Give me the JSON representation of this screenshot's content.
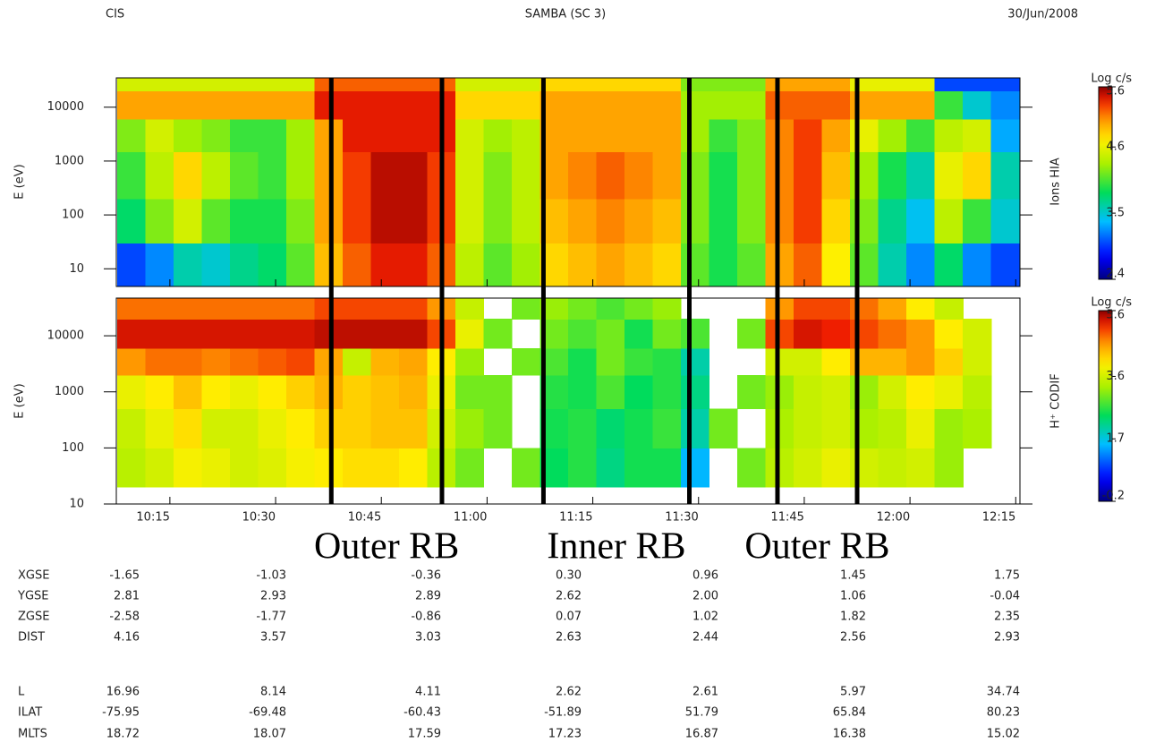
{
  "header": {
    "left": "CIS",
    "center": "SAMBA (SC 3)",
    "right": "30/Jun/2008"
  },
  "chart_data": [
    {
      "type": "heatmap",
      "name": "Ions HIA",
      "ylabel": "E (eV)",
      "log_y": true,
      "xlim": [
        607.4,
        735.6
      ],
      "ylim": [
        4.7,
        35000
      ],
      "yticks": [
        10,
        100,
        1000,
        10000
      ],
      "colorbar": {
        "title": "Log c/s",
        "lim": [
          2.4,
          5.6
        ],
        "ticks": [
          2.4,
          3.5,
          4.6,
          5.6
        ]
      },
      "x_edges": [
        607.5,
        611.5,
        615.5,
        619.5,
        623.5,
        627.5,
        631.5,
        635.5,
        639.5,
        643.5,
        647.5,
        651.5,
        655.5,
        659.5,
        663.5,
        667.5,
        671.5,
        675.5,
        679.5,
        683.5,
        687.5,
        691.5,
        695.5,
        699.5,
        703.5,
        707.5,
        711.5,
        715.5,
        719.5,
        723.5,
        727.5,
        731.5,
        735.5
      ],
      "y_edges": [
        4.7,
        30,
        200,
        1500,
        6000,
        20000,
        35000
      ],
      "z": [
        [
          3.0,
          3.2,
          3.6,
          3.5,
          3.7,
          3.8,
          4.1,
          4.9,
          5.2,
          5.4,
          5.4,
          5.2,
          4.4,
          4.1,
          4.3,
          4.8,
          4.9,
          5.0,
          4.9,
          4.8,
          4.1,
          3.9,
          4.1,
          5.0,
          5.2,
          4.7,
          4.1,
          3.6,
          3.2,
          3.8,
          3.2,
          3.0
        ],
        [
          3.8,
          4.2,
          4.5,
          4.1,
          3.9,
          3.9,
          4.2,
          5.0,
          5.3,
          5.5,
          5.5,
          5.3,
          4.5,
          4.2,
          4.4,
          4.9,
          5.0,
          5.1,
          5.0,
          4.9,
          4.2,
          3.9,
          4.2,
          5.1,
          5.3,
          4.8,
          4.2,
          3.7,
          3.4,
          4.4,
          4.0,
          3.5
        ],
        [
          4.0,
          4.4,
          4.8,
          4.4,
          4.1,
          4.0,
          4.3,
          5.0,
          5.3,
          5.5,
          5.5,
          5.3,
          4.5,
          4.2,
          4.4,
          5.0,
          5.1,
          5.2,
          5.1,
          5.0,
          4.2,
          3.9,
          4.2,
          5.1,
          5.3,
          4.9,
          4.3,
          3.9,
          3.6,
          4.6,
          4.8,
          3.6
        ],
        [
          4.2,
          4.5,
          4.3,
          4.2,
          4.0,
          4.0,
          4.3,
          5.0,
          5.4,
          5.4,
          5.4,
          5.4,
          4.5,
          4.3,
          4.4,
          5.0,
          5.0,
          5.0,
          5.0,
          5.0,
          4.3,
          4.0,
          4.2,
          5.1,
          5.3,
          5.0,
          4.6,
          4.3,
          4.0,
          4.4,
          4.5,
          3.3
        ],
        [
          5.0,
          5.0,
          5.0,
          5.0,
          5.0,
          5.0,
          5.0,
          5.4,
          5.4,
          5.4,
          5.4,
          5.4,
          4.8,
          4.8,
          4.8,
          5.0,
          5.0,
          5.0,
          5.0,
          5.0,
          4.3,
          4.3,
          4.3,
          5.2,
          5.2,
          5.2,
          5.0,
          5.0,
          5.0,
          4.0,
          3.5,
          3.2
        ],
        [
          4.5,
          4.5,
          4.5,
          4.5,
          4.5,
          4.5,
          4.5,
          5.2,
          5.2,
          5.2,
          5.2,
          5.2,
          4.5,
          4.5,
          4.5,
          4.8,
          4.8,
          4.8,
          4.8,
          4.8,
          4.2,
          4.2,
          4.2,
          5.0,
          5.0,
          5.0,
          4.6,
          4.6,
          4.6,
          3.0,
          3.0,
          3.0
        ]
      ]
    },
    {
      "type": "heatmap",
      "name": "H⁺ CODIF",
      "ylabel": "E (eV)",
      "log_y": true,
      "xlim": [
        607.4,
        735.6
      ],
      "ylim": [
        10,
        47000
      ],
      "yticks": [
        10,
        100,
        1000,
        10000
      ],
      "xticks": [
        {
          "value": 615,
          "label": "10:15"
        },
        {
          "value": 630,
          "label": "10:30"
        },
        {
          "value": 645,
          "label": "10:45"
        },
        {
          "value": 660,
          "label": "11:00"
        },
        {
          "value": 675,
          "label": "11:15"
        },
        {
          "value": 690,
          "label": "11:30"
        },
        {
          "value": 705,
          "label": "11:45"
        },
        {
          "value": 720,
          "label": "12:00"
        },
        {
          "value": 735,
          "label": "12:15"
        }
      ],
      "colorbar": {
        "title": "Log c/s",
        "lim": [
          -0.2,
          5.6
        ],
        "ticks": [
          -0.2,
          1.7,
          3.6,
          5.6
        ]
      },
      "x_edges": [
        607.5,
        611.5,
        615.5,
        619.5,
        623.5,
        627.5,
        631.5,
        635.5,
        639.5,
        643.5,
        647.5,
        651.5,
        655.5,
        659.5,
        663.5,
        667.5,
        671.5,
        675.5,
        679.5,
        683.5,
        687.5,
        691.5,
        695.5,
        699.5,
        703.5,
        707.5,
        711.5,
        715.5,
        719.5,
        723.5,
        727.5,
        731.5,
        735.5
      ],
      "y_edges": [
        20,
        100,
        500,
        2000,
        6000,
        20000,
        47000
      ],
      "z": [
        [
          3.4,
          3.6,
          3.9,
          3.8,
          3.6,
          3.7,
          3.9,
          4.0,
          4.1,
          4.1,
          4.0,
          3.4,
          3.0,
          null,
          3.0,
          2.4,
          2.6,
          2.2,
          2.5,
          2.5,
          1.5,
          null,
          3.0,
          3.4,
          3.6,
          3.8,
          3.6,
          3.5,
          3.6,
          3.2,
          null,
          null
        ],
        [
          3.5,
          3.8,
          4.1,
          3.6,
          3.6,
          3.8,
          4.0,
          4.2,
          4.2,
          4.3,
          4.3,
          3.6,
          3.2,
          3.0,
          null,
          2.5,
          2.6,
          2.3,
          2.5,
          2.7,
          2.0,
          3.0,
          null,
          3.3,
          3.5,
          3.6,
          3.3,
          3.4,
          3.8,
          3.2,
          3.3,
          null
        ],
        [
          3.8,
          4.0,
          4.3,
          4.0,
          3.8,
          4.0,
          4.2,
          4.4,
          4.2,
          4.3,
          4.4,
          3.8,
          3.0,
          3.0,
          null,
          2.6,
          2.5,
          2.8,
          2.4,
          2.6,
          2.2,
          null,
          3.0,
          3.2,
          3.5,
          3.6,
          3.2,
          3.6,
          4.0,
          3.8,
          3.4,
          null
        ],
        [
          4.6,
          4.8,
          4.8,
          4.7,
          4.8,
          4.9,
          5.0,
          4.5,
          3.5,
          4.4,
          4.5,
          4.0,
          3.2,
          null,
          3.0,
          2.8,
          2.5,
          3.0,
          2.7,
          2.6,
          2.0,
          null,
          null,
          3.6,
          3.6,
          4.0,
          4.4,
          4.4,
          4.6,
          4.2,
          3.6,
          null
        ],
        [
          5.3,
          5.3,
          5.3,
          5.3,
          5.3,
          5.3,
          5.3,
          5.4,
          5.4,
          5.4,
          5.4,
          5.0,
          3.8,
          3.0,
          null,
          3.0,
          2.8,
          3.0,
          2.5,
          3.0,
          2.8,
          null,
          3.0,
          5.0,
          5.3,
          5.2,
          5.0,
          4.8,
          4.6,
          4.0,
          3.6,
          null
        ],
        [
          4.8,
          4.8,
          4.8,
          4.8,
          4.8,
          4.8,
          4.8,
          5.0,
          5.0,
          5.0,
          5.0,
          4.6,
          3.5,
          null,
          3.0,
          3.2,
          3.0,
          2.8,
          3.0,
          3.2,
          null,
          null,
          null,
          4.6,
          5.0,
          5.0,
          4.8,
          4.5,
          4.0,
          3.5,
          null,
          null
        ]
      ]
    }
  ],
  "boundaries": [
    637.9,
    653.6,
    668,
    688.7,
    701.2,
    712.5
  ],
  "regions": [
    "Outer RB",
    "Inner RB",
    "Outer RB"
  ],
  "ephemeris": [
    {
      "label": "XGSE",
      "values": [
        "-1.65",
        "-1.03",
        "-0.36",
        "0.30",
        "0.96",
        "1.45",
        "1.75"
      ]
    },
    {
      "label": "YGSE",
      "values": [
        "2.81",
        "2.93",
        "2.89",
        "2.62",
        "2.00",
        "1.06",
        "-0.04"
      ]
    },
    {
      "label": "ZGSE",
      "values": [
        "-2.58",
        "-1.77",
        "-0.86",
        "0.07",
        "1.02",
        "1.82",
        "2.35"
      ]
    },
    {
      "label": "DIST",
      "values": [
        "4.16",
        "3.57",
        "3.03",
        "2.63",
        "2.44",
        "2.56",
        "2.93"
      ]
    },
    {
      "label": "L",
      "values": [
        "16.96",
        "8.14",
        "4.11",
        "2.62",
        "2.61",
        "5.97",
        "34.74"
      ]
    },
    {
      "label": "ILAT",
      "values": [
        "-75.95",
        "-69.48",
        "-60.43",
        "-51.89",
        "51.79",
        "65.84",
        "80.23"
      ]
    },
    {
      "label": "MLTS",
      "values": [
        "18.72",
        "18.07",
        "17.59",
        "17.23",
        "16.87",
        "16.38",
        "15.02"
      ]
    }
  ]
}
